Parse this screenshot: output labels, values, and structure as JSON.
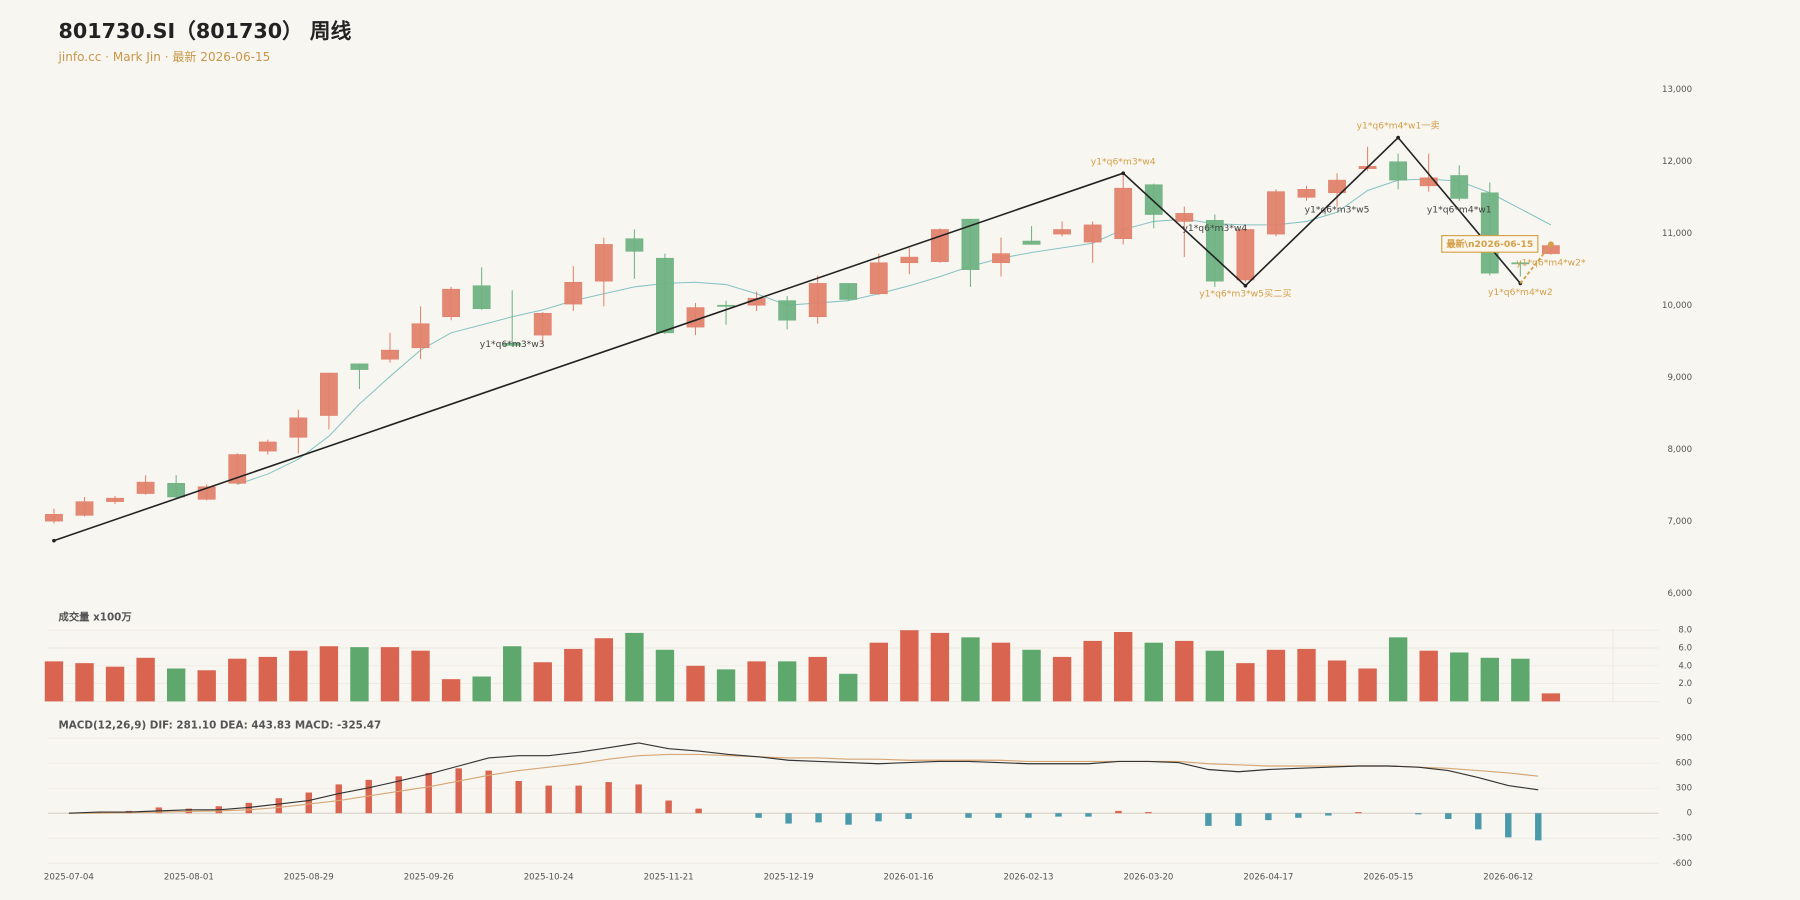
{
  "title": "801730.SI（801730） 周线",
  "subtitle": "jinfo.cc · Mark Jin · 最新 2026-06-15",
  "chart_data": [
    {
      "type": "candlestick",
      "categories": [
        "2025-07-04",
        null,
        null,
        null,
        "2025-08-01",
        null,
        null,
        null,
        "2025-08-29",
        null,
        null,
        null,
        "2025-09-26",
        null,
        null,
        null,
        "2025-10-24",
        null,
        null,
        null,
        "2025-11-21",
        null,
        null,
        null,
        "2025-12-19",
        null,
        null,
        null,
        "2026-01-16",
        null,
        null,
        null,
        "2026-02-13",
        null,
        null,
        null,
        "2026-03-20",
        null,
        null,
        null,
        "2026-04-17",
        null,
        null,
        null,
        "2026-05-15",
        null,
        null,
        null,
        "2026-06-12",
        null
      ],
      "open": [
        7005,
        7085,
        7276,
        7388,
        7531,
        7308,
        7531,
        7978,
        8169,
        8472,
        9190,
        9254,
        9413,
        9844,
        10275,
        9477,
        9589,
        10020,
        10338,
        10928,
        10657,
        9700,
        10004,
        10004,
        10068,
        9844,
        10307,
        10163,
        10594,
        10609,
        11200,
        10594,
        10896,
        10992,
        10881,
        10928,
        11678,
        11168,
        11184,
        10355,
        10992,
        11503,
        11566,
        11901,
        11997,
        11662,
        11806,
        11566,
        10594,
        10721
      ],
      "high": [
        7180,
        7340,
        7356,
        7643,
        7643,
        7515,
        7946,
        8137,
        8552,
        9062,
        9190,
        9621,
        9988,
        10259,
        10530,
        10211,
        9908,
        10546,
        10944,
        11056,
        10721,
        10036,
        10068,
        10195,
        10131,
        10418,
        10307,
        10721,
        10801,
        11072,
        11200,
        10944,
        11104,
        11168,
        11168,
        11853,
        11694,
        11375,
        11264,
        11072,
        11614,
        11662,
        11837,
        12205,
        12109,
        12109,
        11949,
        11710,
        10625,
        10880
      ],
      "low": [
        6973,
        7070,
        7244,
        7372,
        7324,
        7292,
        7515,
        7930,
        7946,
        8281,
        8839,
        9206,
        9254,
        9796,
        9940,
        9429,
        9461,
        9924,
        9988,
        10371,
        9605,
        9589,
        9732,
        9924,
        9668,
        9748,
        10068,
        10147,
        10434,
        10594,
        10259,
        10402,
        10849,
        10960,
        10594,
        10849,
        11072,
        10673,
        10259,
        10323,
        10960,
        11455,
        11375,
        11869,
        11614,
        11582,
        11455,
        10418,
        10402,
        10705
      ],
      "close": [
        7100,
        7276,
        7324,
        7547,
        7340,
        7483,
        7930,
        8105,
        8440,
        9062,
        9110,
        9381,
        9748,
        10227,
        9956,
        9445,
        9892,
        10323,
        10849,
        10753,
        9621,
        9972,
        9988,
        10100,
        9796,
        10307,
        10084,
        10594,
        10673,
        11056,
        10498,
        10721,
        10849,
        11056,
        11120,
        11630,
        11264,
        11280,
        10338,
        11056,
        11582,
        11614,
        11742,
        11933,
        11742,
        11774,
        11487,
        10450,
        10578,
        10833
      ],
      "up_color": "#e0826c",
      "down_color": "#6fb282",
      "ma": [
        null,
        null,
        null,
        null,
        null,
        null,
        7515,
        7659,
        7866,
        8185,
        8632,
        9015,
        9381,
        9621,
        9732,
        9844,
        9940,
        10067,
        10163,
        10259,
        10307,
        10323,
        10291,
        10163,
        10004,
        10036,
        10067,
        10163,
        10275,
        10402,
        10546,
        10657,
        10737,
        10801,
        10865,
        11056,
        11168,
        11200,
        11136,
        11120,
        11120,
        11168,
        11295,
        11598,
        11742,
        11758,
        11726,
        11566,
        11343,
        11120
      ],
      "ma_color": "#86c3c3",
      "zigzag": {
        "x": [
          0,
          35,
          39,
          44,
          48
        ],
        "values": [
          6734,
          11838,
          10275,
          12332,
          10307
        ],
        "color": "#222222"
      },
      "projection": {
        "x": [
          48,
          49
        ],
        "values": [
          10307,
          10849
        ],
        "color": "#d4a04a"
      },
      "annotations": [
        {
          "text": "y1*q6*m3*w3",
          "x": 15,
          "value": 9461,
          "color": "#444444"
        },
        {
          "text": "y1*q6*m3*w4",
          "x": 35,
          "value": 11997,
          "color": "#d4a04a"
        },
        {
          "text": "y1*q6*m3*w4",
          "x": 38,
          "value": 11072,
          "color": "#444444"
        },
        {
          "text": "y1*q6*m3*w5买二买",
          "x": 39,
          "value": 10163,
          "color": "#d4a04a"
        },
        {
          "text": "y1*q6*m3*w5",
          "x": 42,
          "value": 11327,
          "color": "#444444"
        },
        {
          "text": "y1*q6*m4*w1一卖",
          "x": 44,
          "value": 12492,
          "color": "#d4a04a"
        },
        {
          "text": "y1*q6*m4*w1",
          "x": 46,
          "value": 11327,
          "color": "#444444"
        },
        {
          "text": "最新\\n2026-06-15",
          "x": 47,
          "value": 10849,
          "color": "#d4a04a",
          "boxed": true
        },
        {
          "text": "y1*q6*m4*w2",
          "x": 48,
          "value": 10179,
          "color": "#d4a04a"
        },
        {
          "text": "y1*q6*m4*w2*",
          "x": 49,
          "value": 10594,
          "color": "#d4a04a"
        }
      ],
      "ylim": [
        6000,
        13000
      ],
      "yticks": [
        {
          "value": 6000,
          "label": "6,000"
        },
        {
          "value": 7000,
          "label": "7,000"
        },
        {
          "value": 8000,
          "label": "8,000"
        },
        {
          "value": 9000,
          "label": "9,000"
        },
        {
          "value": 10000,
          "label": "10,000"
        },
        {
          "value": 11000,
          "label": "11,000"
        },
        {
          "value": 12000,
          "label": "12,000"
        },
        {
          "value": 13000,
          "label": "13,000"
        }
      ],
      "grid": false
    },
    {
      "type": "bar",
      "title": "成交量 x100万",
      "values": [
        4.5,
        4.3,
        3.9,
        4.9,
        3.7,
        3.5,
        4.8,
        5.0,
        5.7,
        6.2,
        6.1,
        6.1,
        5.7,
        2.5,
        2.8,
        6.2,
        4.4,
        5.9,
        7.1,
        7.7,
        5.8,
        4.0,
        3.6,
        4.5,
        4.5,
        5.0,
        3.1,
        6.6,
        8.0,
        7.7,
        7.2,
        6.6,
        5.8,
        5.0,
        6.8,
        7.8,
        6.6,
        6.8,
        5.7,
        4.3,
        5.8,
        5.9,
        4.6,
        3.7,
        7.2,
        5.7,
        5.5,
        4.9,
        4.8,
        0.9
      ],
      "up_color": "#d9644f",
      "down_color": "#5fa86d",
      "ylim": [
        0,
        8
      ],
      "yticks": [
        0,
        {
          "value": 2,
          "label": "2.0"
        },
        {
          "value": 4,
          "label": "4.0"
        },
        {
          "value": 6,
          "label": "6.0"
        },
        {
          "value": 8,
          "label": "8.0"
        }
      ],
      "grid": true
    },
    {
      "type": "macd",
      "title": "MACD(12,26,9) DIF: 281.10 DEA: 443.83 MACD: -325.47",
      "dif": [
        0,
        14,
        14,
        28,
        41,
        41,
        69,
        110,
        152,
        235,
        304,
        386,
        469,
        566,
        662,
        690,
        690,
        731,
        786,
        842,
        773,
        745,
        704,
        676,
        635,
        621,
        607,
        593,
        607,
        621,
        621,
        607,
        593,
        593,
        593,
        621,
        621,
        607,
        524,
        497,
        524,
        538,
        552,
        566,
        566,
        552,
        511,
        428,
        331,
        281.1
      ],
      "dea": [
        0,
        0,
        7,
        14,
        21,
        28,
        41,
        69,
        110,
        152,
        207,
        262,
        317,
        386,
        455,
        511,
        552,
        593,
        648,
        690,
        704,
        704,
        690,
        676,
        662,
        662,
        648,
        648,
        635,
        635,
        635,
        635,
        621,
        621,
        621,
        621,
        621,
        621,
        593,
        580,
        566,
        566,
        566,
        566,
        566,
        552,
        538,
        511,
        483,
        443.83
      ],
      "hist": [
        0,
        14,
        28,
        69,
        55,
        83,
        124,
        180,
        248,
        345,
        400,
        442,
        483,
        538,
        511,
        386,
        331,
        331,
        373,
        345,
        152,
        55,
        0,
        -55,
        -124,
        -110,
        -138,
        -97,
        -69,
        0,
        -55,
        -55,
        -55,
        -41,
        -41,
        28,
        14,
        0,
        -152,
        -152,
        -83,
        -55,
        -28,
        14,
        0,
        -14,
        -69,
        -193,
        -290,
        -325.47
      ],
      "dif_color": "#333333",
      "dea_color": "#d6a775",
      "pos_color": "#d9644f",
      "neg_color": "#4b9aac",
      "ylim": [
        -600,
        900
      ],
      "yticks": [
        900,
        600,
        300,
        0,
        -300,
        -600
      ],
      "grid": true
    }
  ]
}
